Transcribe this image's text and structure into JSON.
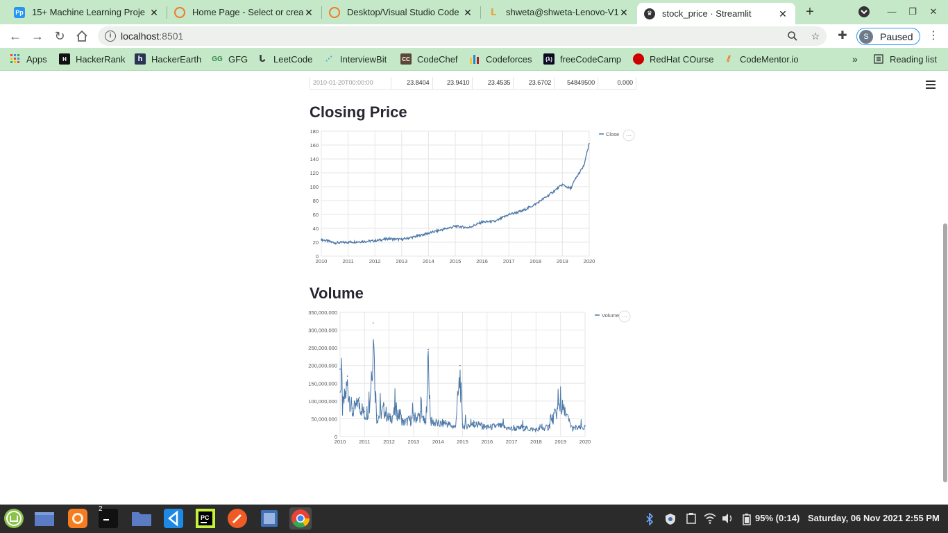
{
  "browser": {
    "tabs": [
      {
        "title": "15+ Machine Learning Proje",
        "icon": "pp-icon",
        "color": "#2196f3"
      },
      {
        "title": "Home Page - Select or creat",
        "icon": "jupyter-icon",
        "color": "#f37726"
      },
      {
        "title": "Desktop/Visual Studio Code",
        "icon": "jupyter-icon",
        "color": "#f37726"
      },
      {
        "title": "shweta@shweta-Lenovo-V1",
        "icon": "terminal-icon",
        "color": "#e9a23b"
      },
      {
        "title": "stock_price · Streamlit",
        "icon": "streamlit-icon",
        "color": "#ff4b4b"
      }
    ],
    "url_host": "localhost",
    "url_port": ":8501",
    "profile_initial": "S",
    "profile_status": "Paused"
  },
  "bookmarks": [
    {
      "label": "Apps",
      "icon": "apps-grid-icon"
    },
    {
      "label": "HackerRank",
      "icon": "hackerrank-icon"
    },
    {
      "label": "HackerEarth",
      "icon": "hackerearth-icon"
    },
    {
      "label": "GFG",
      "icon": "gfg-icon"
    },
    {
      "label": "LeetCode",
      "icon": "leetcode-icon"
    },
    {
      "label": "InterviewBit",
      "icon": "interviewbit-icon"
    },
    {
      "label": "CodeChef",
      "icon": "codechef-icon"
    },
    {
      "label": "Codeforces",
      "icon": "codeforces-icon"
    },
    {
      "label": "freeCodeCamp",
      "icon": "freecodecamp-icon"
    },
    {
      "label": "RedHat COurse",
      "icon": "redhat-icon"
    },
    {
      "label": "CodeMentor.io",
      "icon": "codementor-icon"
    },
    {
      "label": "Reading list",
      "icon": "reading-list-icon"
    }
  ],
  "table_row": [
    "2010-01-20T00:00:00",
    "23.8404",
    "23.9410",
    "23.4535",
    "23.6702",
    "54849500",
    "0.000"
  ],
  "sections": {
    "closing_title": "Closing Price",
    "volume_title": "Volume"
  },
  "chart_data": [
    {
      "type": "line",
      "title": "Closing Price",
      "legend": "Close",
      "legend_position": "top-right",
      "grid": true,
      "color": "#4c78a8",
      "ylim": [
        0,
        180
      ],
      "y_ticks": [
        "0",
        "20",
        "40",
        "60",
        "80",
        "100",
        "120",
        "140",
        "160",
        "180"
      ],
      "x_ticks": [
        "2010",
        "2011",
        "2012",
        "2013",
        "2014",
        "2015",
        "2016",
        "2017",
        "2018",
        "2019",
        "2020"
      ],
      "x": [
        2010.0,
        2010.5,
        2011.0,
        2011.5,
        2012.0,
        2012.5,
        2013.0,
        2013.5,
        2014.0,
        2014.5,
        2015.0,
        2015.5,
        2016.0,
        2016.5,
        2017.0,
        2017.5,
        2018.0,
        2018.5,
        2019.0,
        2019.3,
        2019.5,
        2019.8,
        2020.0
      ],
      "values": [
        24,
        19,
        20,
        21,
        22,
        25,
        24,
        28,
        33,
        38,
        43,
        41,
        49,
        50,
        60,
        65,
        75,
        88,
        103,
        97,
        112,
        130,
        162
      ]
    },
    {
      "type": "line",
      "title": "Volume",
      "legend": "Volume",
      "legend_position": "top-right",
      "grid": true,
      "color": "#4c78a8",
      "ylim": [
        0,
        350000000
      ],
      "y_ticks": [
        "0",
        "50,000,000",
        "100,000,000",
        "150,000,000",
        "200,000,000",
        "250,000,000",
        "300,000,000",
        "350,000,000"
      ],
      "x_ticks": [
        "2010",
        "2011",
        "2012",
        "2013",
        "2014",
        "2015",
        "2016",
        "2017",
        "2018",
        "2019",
        "2020"
      ],
      "x": [
        2010.0,
        2010.1,
        2010.3,
        2010.5,
        2010.8,
        2011.0,
        2011.2,
        2011.35,
        2011.5,
        2011.8,
        2012.0,
        2012.3,
        2012.6,
        2013.0,
        2013.3,
        2013.5,
        2013.6,
        2013.7,
        2014.0,
        2014.3,
        2014.7,
        2014.9,
        2015.0,
        2015.5,
        2016.0,
        2016.5,
        2017.0,
        2017.5,
        2018.0,
        2018.5,
        2019.0,
        2019.5,
        2020.0
      ],
      "values": [
        190000000,
        90000000,
        170000000,
        80000000,
        110000000,
        70000000,
        95000000,
        320000000,
        60000000,
        90000000,
        55000000,
        85000000,
        45000000,
        60000000,
        70000000,
        40000000,
        245000000,
        50000000,
        40000000,
        45000000,
        30000000,
        200000000,
        35000000,
        40000000,
        30000000,
        35000000,
        25000000,
        28000000,
        22000000,
        30000000,
        105000000,
        25000000,
        30000000
      ]
    }
  ],
  "taskbar": {
    "apps": [
      "mint-menu-icon",
      "show-desktop-icon",
      "firefox-icon",
      "terminal-icon",
      "files-icon",
      "vscode-icon",
      "pycharm-icon",
      "postman-icon",
      "virtualbox-icon",
      "chrome-icon"
    ],
    "terminal_badge": "2",
    "battery": "95% (0:14)",
    "datetime": "Saturday, 06 Nov 2021  2:55 PM"
  }
}
